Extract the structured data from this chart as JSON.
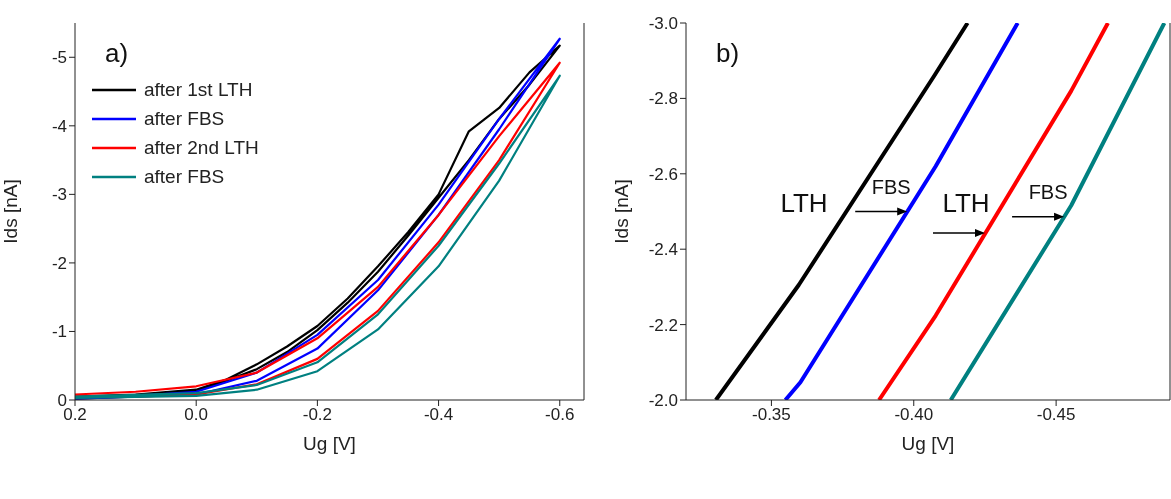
{
  "chart_data": [
    {
      "type": "line",
      "xlabel": "Ug [V]",
      "ylabel": "Ids [nA]",
      "annotations": [
        "a)"
      ],
      "xlim": [
        0.2,
        -0.64
      ],
      "xticks": [
        0.2,
        {
          "value": 0,
          "label": "0.0"
        },
        -0.2,
        -0.4,
        -0.6
      ],
      "ylim": [
        0,
        -5.5
      ],
      "yticks": [
        0,
        -1,
        -2,
        -3,
        -4,
        -5
      ],
      "grid": false,
      "legend": "top left",
      "marker": "none",
      "line_style": "solid",
      "series": [
        {
          "name": "after 1st LTH",
          "color": "#000000",
          "x": [
            0.2,
            0.1,
            0,
            -0.05,
            -0.1,
            -0.15,
            -0.2,
            -0.25,
            -0.3,
            -0.35,
            -0.4,
            -0.45,
            -0.5,
            -0.55,
            -0.6,
            -0.55,
            -0.5,
            -0.45,
            -0.4,
            -0.35,
            -0.3,
            -0.25,
            -0.2,
            -0.15,
            -0.1,
            -0.05,
            0,
            0.1,
            0.2
          ],
          "values": [
            -0.05,
            -0.08,
            -0.15,
            -0.3,
            -0.52,
            -0.78,
            -1.08,
            -1.48,
            -1.95,
            -2.45,
            -3.0,
            -3.92,
            -4.26,
            -4.78,
            -5.17,
            -4.6,
            -4.1,
            -3.5,
            -2.95,
            -2.4,
            -1.87,
            -1.42,
            -1.02,
            -0.7,
            -0.45,
            -0.28,
            -0.14,
            -0.05,
            -0.02
          ]
        },
        {
          "name": "after FBS",
          "color": "#0000ff",
          "x": [
            0.2,
            0.1,
            0,
            -0.1,
            -0.2,
            -0.3,
            -0.4,
            -0.5,
            -0.6,
            -0.5,
            -0.4,
            -0.3,
            -0.2,
            -0.1,
            0,
            0.2
          ],
          "values": [
            -0.03,
            -0.06,
            -0.12,
            -0.4,
            -0.95,
            -1.75,
            -2.85,
            -4.1,
            -5.27,
            -3.95,
            -2.7,
            -1.6,
            -0.75,
            -0.28,
            -0.08,
            -0.02
          ]
        },
        {
          "name": "after 2nd LTH",
          "color": "#ff0000",
          "x": [
            0.2,
            0.1,
            0,
            -0.1,
            -0.2,
            -0.3,
            -0.4,
            -0.5,
            -0.6,
            -0.5,
            -0.4,
            -0.3,
            -0.2,
            -0.1,
            0,
            0.1,
            0.2
          ],
          "values": [
            -0.08,
            -0.12,
            -0.2,
            -0.4,
            -0.9,
            -1.65,
            -2.7,
            -3.85,
            -4.92,
            -3.5,
            -2.3,
            -1.3,
            -0.6,
            -0.23,
            -0.08,
            -0.05,
            -0.05
          ]
        },
        {
          "name": "after FBS",
          "color": "#008080",
          "x": [
            0.2,
            0,
            -0.1,
            -0.2,
            -0.3,
            -0.4,
            -0.5,
            -0.6,
            -0.5,
            -0.4,
            -0.3,
            -0.2,
            -0.1,
            0,
            0.2
          ],
          "values": [
            -0.05,
            -0.1,
            -0.22,
            -0.55,
            -1.25,
            -2.25,
            -3.45,
            -4.73,
            -3.2,
            -1.95,
            -1.03,
            -0.42,
            -0.15,
            -0.06,
            -0.03
          ]
        }
      ]
    },
    {
      "type": "line",
      "xlabel": "Ug [V]",
      "ylabel": "Ids [nA]",
      "annotations": [
        "b)",
        "LTH",
        {
          "text": "FBS",
          "x": -0.3977,
          "y": -2.5
        },
        "LTH",
        {
          "text": "FBS",
          "x": -0.4528,
          "y": -2.486
        }
      ],
      "xlim": [
        -0.32,
        -0.49
      ],
      "xticks": [
        -0.35,
        {
          "value": -0.4,
          "label": "-0.40"
        },
        -0.45
      ],
      "ylim": [
        -2,
        -3
      ],
      "yticks": [
        {
          "value": -2,
          "label": "-2.0"
        },
        -2.2,
        -2.4,
        -2.6,
        -2.8,
        {
          "value": -3,
          "label": "-3.0"
        }
      ],
      "grid": false,
      "legend": false,
      "marker": "none",
      "line_style": "solid",
      "series": [
        {
          "color": "#000000",
          "x": [
            -0.3305,
            -0.3596,
            -0.4072,
            -0.4189
          ],
          "values": [
            -2.0,
            -2.305,
            -2.86,
            -3.0
          ]
        },
        {
          "color": "#0000ff",
          "x": [
            -0.3549,
            -0.3602,
            -0.4077,
            -0.4365
          ],
          "values": [
            -2.0,
            -2.047,
            -2.62,
            -3.0
          ]
        },
        {
          "color": "#ff0000",
          "x": [
            -0.3878,
            -0.4077,
            -0.4553,
            -0.4682
          ],
          "values": [
            -2.0,
            -2.224,
            -2.82,
            -3.0
          ]
        },
        {
          "color": "#008080",
          "x": [
            -0.413,
            -0.4553,
            -0.488
          ],
          "values": [
            -2.0,
            -2.516,
            -3.0
          ]
        }
      ]
    }
  ]
}
